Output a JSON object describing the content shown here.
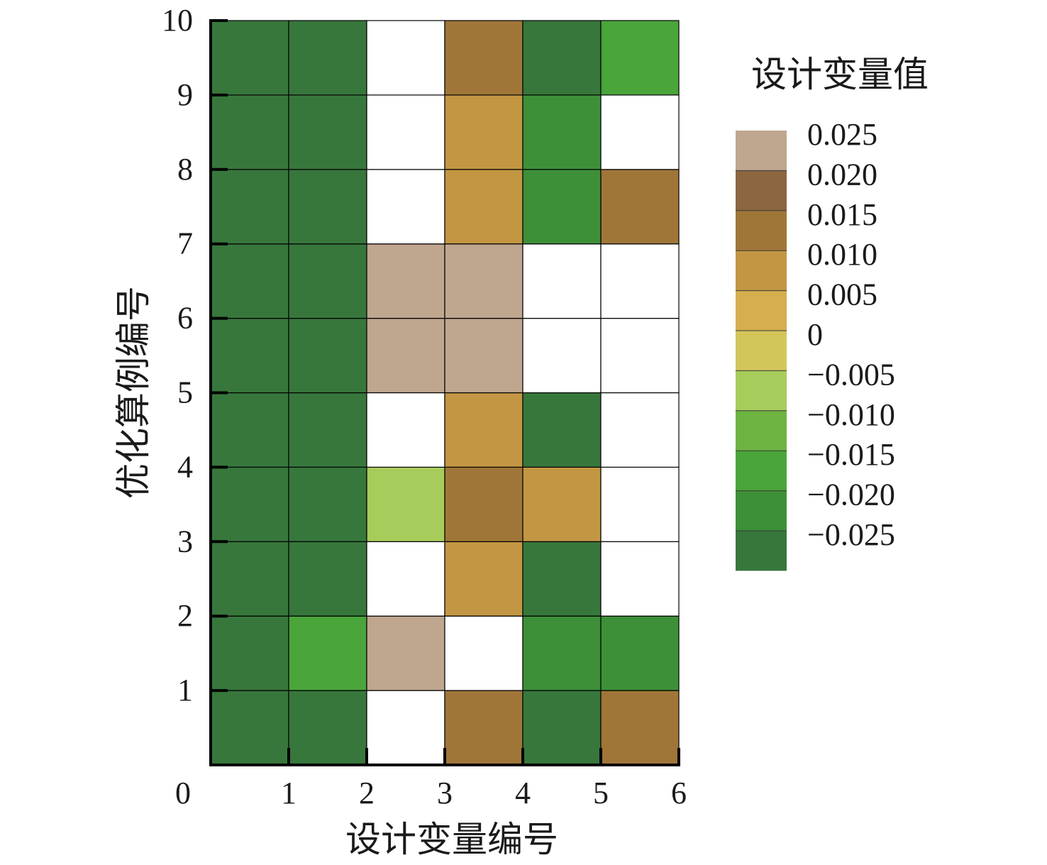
{
  "chart_data": {
    "type": "heatmap",
    "xlabel": "设计变量编号",
    "ylabel": "优化算例编号",
    "xlim": [
      0,
      6
    ],
    "ylim": [
      0,
      10
    ],
    "x_ticks": [
      "0",
      "1",
      "2",
      "3",
      "4",
      "5",
      "6"
    ],
    "y_ticks": [
      "1",
      "2",
      "3",
      "4",
      "5",
      "6",
      "7",
      "8",
      "9",
      "10"
    ],
    "grid": true,
    "legend": {
      "title": "设计变量值",
      "placement": "right",
      "levels": [
        "0.025",
        "0.020",
        "0.015",
        "0.010",
        "0.005",
        "0",
        "−0.005",
        "−0.010",
        "−0.015",
        "−0.020",
        "−0.025"
      ],
      "colors": [
        "#bfa68f",
        "#8b6640",
        "#a07638",
        "#c29643",
        "#d5ae4f",
        "#d2c65a",
        "#a8cc5b",
        "#6db342",
        "#4aa53a",
        "#3d9038",
        "#37773c"
      ]
    },
    "values": [
      [
        -0.025,
        -0.025,
        null,
        0.015,
        -0.025,
        0.015
      ],
      [
        -0.025,
        -0.015,
        0.025,
        null,
        -0.02,
        -0.02
      ],
      [
        -0.025,
        -0.025,
        null,
        0.01,
        -0.025,
        null
      ],
      [
        -0.025,
        -0.025,
        -0.005,
        0.015,
        0.01,
        null
      ],
      [
        -0.025,
        -0.025,
        null,
        0.01,
        -0.025,
        null
      ],
      [
        -0.025,
        -0.025,
        0.025,
        0.025,
        null,
        null
      ],
      [
        -0.025,
        -0.025,
        0.025,
        0.025,
        null,
        null
      ],
      [
        -0.025,
        -0.025,
        null,
        0.01,
        -0.02,
        0.015
      ],
      [
        -0.025,
        -0.025,
        null,
        0.01,
        -0.02,
        null
      ],
      [
        -0.025,
        -0.025,
        null,
        0.015,
        -0.025,
        -0.015
      ]
    ]
  }
}
